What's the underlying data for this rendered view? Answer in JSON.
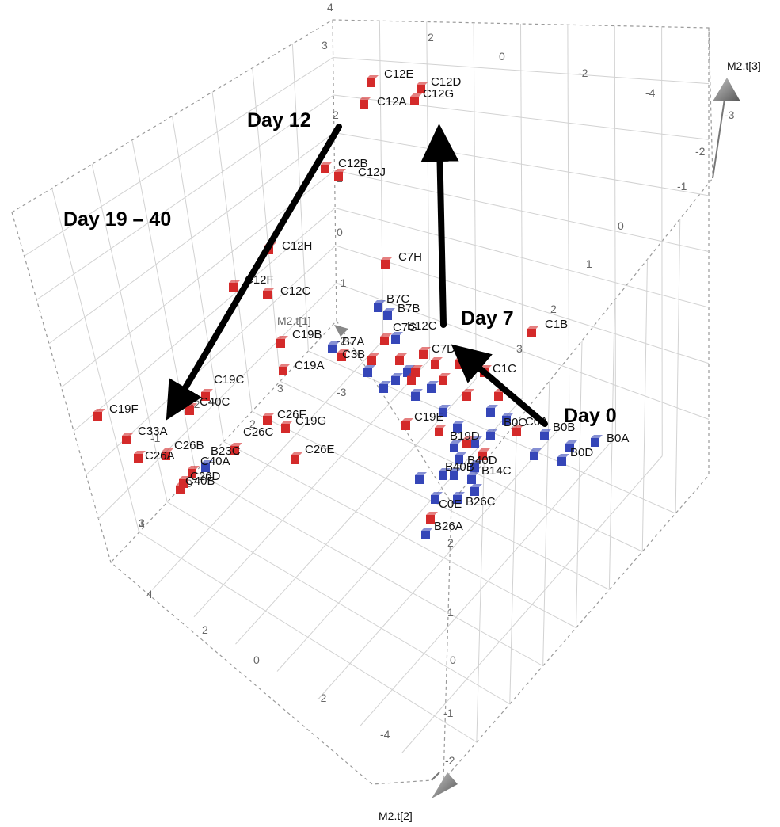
{
  "chart_data": {
    "type": "scatter",
    "subtype": "3d-scatter",
    "axes": {
      "x": "M2.t[1]",
      "y": "M2.t[2]",
      "z": "M2.t[3]"
    },
    "grid": true,
    "box": "dashed-cube",
    "series_colors": {
      "C": "#d42a2a",
      "B": "#3546b8"
    },
    "ticks": [
      {
        "axis": "z",
        "value": "4"
      },
      {
        "axis": "z",
        "value": "3"
      },
      {
        "axis": "z",
        "value": "2"
      },
      {
        "axis": "z",
        "value": "1"
      },
      {
        "axis": "z",
        "value": "0"
      },
      {
        "axis": "z",
        "value": "-1"
      },
      {
        "axis": "z",
        "value": "-2"
      },
      {
        "axis": "z",
        "value": "-3"
      },
      {
        "axis": "x",
        "value": "2"
      },
      {
        "axis": "x",
        "value": "0"
      },
      {
        "axis": "x",
        "value": "-2"
      },
      {
        "axis": "x",
        "value": "-4"
      },
      {
        "axis": "z2",
        "value": "-3"
      },
      {
        "axis": "z2",
        "value": "-2"
      },
      {
        "axis": "z2",
        "value": "-1"
      },
      {
        "axis": "z2",
        "value": "0"
      },
      {
        "axis": "z2",
        "value": "1"
      },
      {
        "axis": "z2",
        "value": "2"
      },
      {
        "axis": "z2",
        "value": "3"
      },
      {
        "axis": "y",
        "value": "4"
      },
      {
        "axis": "y",
        "value": "2"
      },
      {
        "axis": "y",
        "value": "0"
      },
      {
        "axis": "y",
        "value": "-2"
      },
      {
        "axis": "y",
        "value": "-4"
      },
      {
        "axis": "y2",
        "value": "2"
      },
      {
        "axis": "y2",
        "value": "1"
      },
      {
        "axis": "y2",
        "value": "0"
      },
      {
        "axis": "y2",
        "value": "-1"
      },
      {
        "axis": "y2",
        "value": "-2"
      },
      {
        "axis": "z3",
        "value": "3"
      },
      {
        "axis": "z3",
        "value": "2"
      },
      {
        "axis": "z3",
        "value": "1"
      },
      {
        "axis": "z3",
        "value": "0"
      },
      {
        "axis": "z3",
        "value": "-1"
      },
      {
        "axis": "z3",
        "value": "-2"
      },
      {
        "axis": "z3",
        "value": "3"
      }
    ],
    "points": [
      {
        "label": "C12E",
        "group": "C"
      },
      {
        "label": "C12D",
        "group": "C"
      },
      {
        "label": "C12A",
        "group": "C"
      },
      {
        "label": "C12G",
        "group": "C"
      },
      {
        "label": "C12B",
        "group": "C"
      },
      {
        "label": "C12J",
        "group": "C"
      },
      {
        "label": "C12H",
        "group": "C"
      },
      {
        "label": "C7H",
        "group": "C"
      },
      {
        "label": "C12F",
        "group": "C"
      },
      {
        "label": "C12C",
        "group": "C"
      },
      {
        "label": "B7C",
        "group": "B"
      },
      {
        "label": "B7B",
        "group": "B"
      },
      {
        "label": "C7G",
        "group": "C"
      },
      {
        "label": "B12C",
        "group": "B"
      },
      {
        "label": "C1B",
        "group": "C"
      },
      {
        "label": "C19B",
        "group": "C"
      },
      {
        "label": "B7A",
        "group": "B"
      },
      {
        "label": "C3B",
        "group": "C"
      },
      {
        "label": "C7D",
        "group": "C"
      },
      {
        "label": "C19A",
        "group": "C"
      },
      {
        "label": "C1C",
        "group": "C"
      },
      {
        "label": "C19C",
        "group": "C"
      },
      {
        "label": "C40C",
        "group": "C"
      },
      {
        "label": "C19F",
        "group": "C"
      },
      {
        "label": "C26F",
        "group": "C"
      },
      {
        "label": "C19G",
        "group": "C"
      },
      {
        "label": "C19E",
        "group": "C"
      },
      {
        "label": "C0A",
        "group": "C"
      },
      {
        "label": "B0B",
        "group": "B"
      },
      {
        "label": "B0A",
        "group": "B"
      },
      {
        "label": "B0D",
        "group": "B"
      },
      {
        "label": "C33A",
        "group": "C"
      },
      {
        "label": "C26C",
        "group": "C"
      },
      {
        "label": "C26A",
        "group": "C"
      },
      {
        "label": "C26B",
        "group": "C"
      },
      {
        "label": "B23C",
        "group": "B"
      },
      {
        "label": "C40A",
        "group": "C"
      },
      {
        "label": "C26D",
        "group": "C"
      },
      {
        "label": "C26E",
        "group": "C"
      },
      {
        "label": "C40B",
        "group": "C"
      },
      {
        "label": "B19D",
        "group": "B"
      },
      {
        "label": "B40D",
        "group": "B"
      },
      {
        "label": "B26C",
        "group": "B"
      },
      {
        "label": "C0E",
        "group": "C"
      },
      {
        "label": "B26A",
        "group": "B"
      },
      {
        "label": "B0C",
        "group": "B"
      },
      {
        "label": "B40B",
        "group": "B"
      },
      {
        "label": "B14C",
        "group": "B"
      },
      {
        "label": "",
        "group": "B"
      },
      {
        "label": "",
        "group": "B"
      },
      {
        "label": "",
        "group": "B"
      },
      {
        "label": "",
        "group": "B"
      },
      {
        "label": "",
        "group": "B"
      },
      {
        "label": "",
        "group": "B"
      },
      {
        "label": "",
        "group": "B"
      },
      {
        "label": "",
        "group": "B"
      },
      {
        "label": "",
        "group": "B"
      },
      {
        "label": "",
        "group": "B"
      },
      {
        "label": "",
        "group": "B"
      },
      {
        "label": "",
        "group": "B"
      },
      {
        "label": "",
        "group": "B"
      },
      {
        "label": "",
        "group": "B"
      },
      {
        "label": "",
        "group": "B"
      },
      {
        "label": "",
        "group": "B"
      },
      {
        "label": "",
        "group": "B"
      },
      {
        "label": "",
        "group": "B"
      },
      {
        "label": "",
        "group": "C"
      },
      {
        "label": "",
        "group": "C"
      },
      {
        "label": "",
        "group": "C"
      },
      {
        "label": "",
        "group": "C"
      },
      {
        "label": "",
        "group": "C"
      },
      {
        "label": "",
        "group": "C"
      },
      {
        "label": "",
        "group": "C"
      },
      {
        "label": "",
        "group": "C"
      },
      {
        "label": "",
        "group": "C"
      },
      {
        "label": "",
        "group": "C"
      },
      {
        "label": "",
        "group": "C"
      },
      {
        "label": "",
        "group": "C"
      }
    ],
    "annotations": [
      {
        "id": "day0",
        "text": "Day 0"
      },
      {
        "id": "day7",
        "text": "Day 7"
      },
      {
        "id": "day12",
        "text": "Day 12"
      },
      {
        "id": "day1940",
        "text": "Day 19 – 40"
      }
    ]
  }
}
